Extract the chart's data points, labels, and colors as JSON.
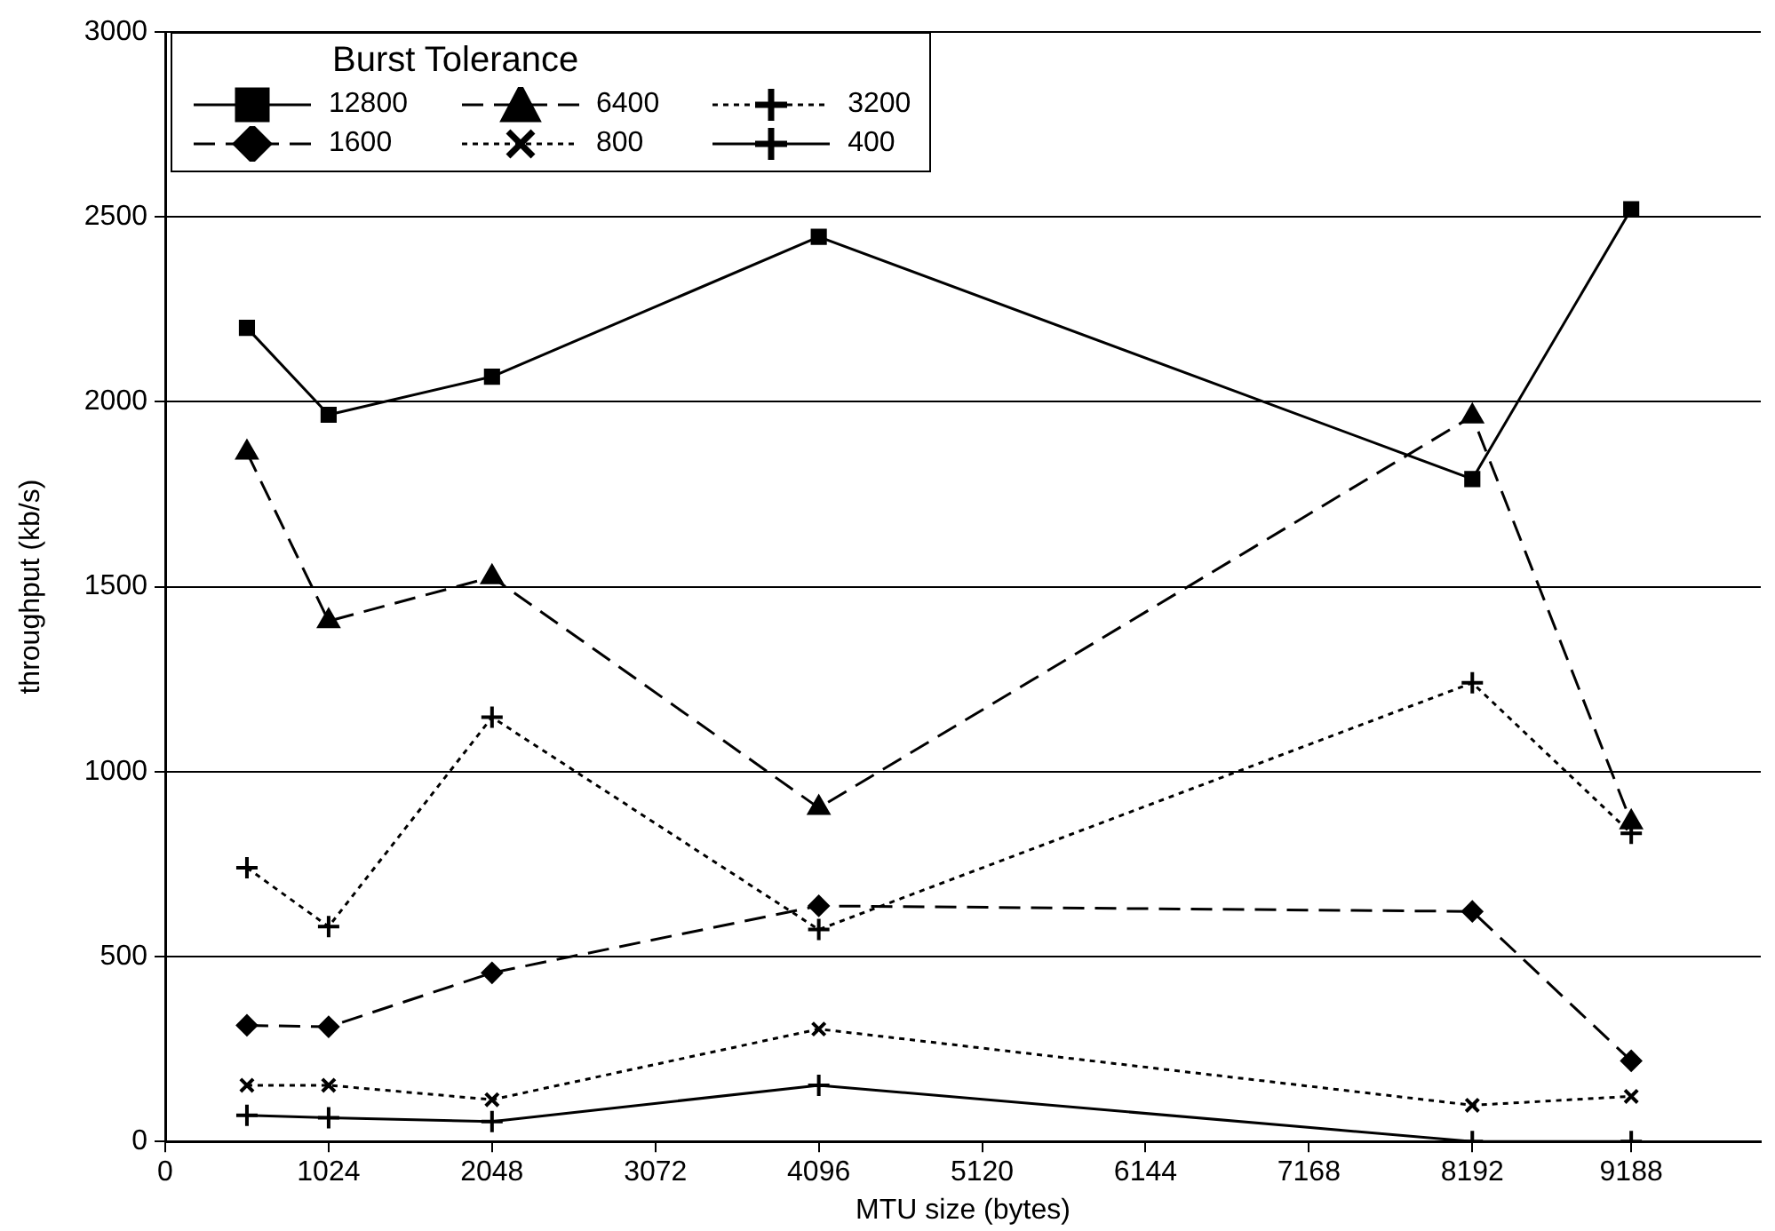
{
  "chart_data": {
    "type": "line",
    "xlabel": "MTU size (bytes)",
    "ylabel": "throughput (kb/s)",
    "legend_title": "Burst Tolerance",
    "x": [
      512,
      1024,
      2048,
      4096,
      8192,
      9188
    ],
    "xlim": [
      0,
      10000
    ],
    "xticks": [
      0,
      1024,
      2048,
      3072,
      4096,
      5120,
      6144,
      7168,
      8192,
      9188
    ],
    "ylim": [
      0,
      3000
    ],
    "yticks": [
      0,
      500,
      1000,
      1500,
      2000,
      2500,
      3000
    ],
    "grid": "y",
    "legend": "top left",
    "series": [
      {
        "name": "12800",
        "color": "#000000",
        "marker": "square",
        "line_style": "solid",
        "values": [
          2200,
          1965,
          2068,
          2446,
          1791,
          2521
        ]
      },
      {
        "name": "6400",
        "color": "#000000",
        "marker": "triangle",
        "line_style": "dashed",
        "values": [
          1863,
          1407,
          1526,
          902,
          1961,
          863
        ]
      },
      {
        "name": "3200",
        "color": "#000000",
        "marker": "cross",
        "line_style": "dotted",
        "values": [
          740,
          581,
          1147,
          573,
          1240,
          833
        ]
      },
      {
        "name": "1600",
        "color": "#000000",
        "marker": "diamond",
        "line_style": "dashed",
        "values": [
          314,
          310,
          456,
          637,
          622,
          218
        ]
      },
      {
        "name": "800",
        "color": "#000000",
        "marker": "x",
        "line_style": "dotted",
        "values": [
          152,
          152,
          113,
          304,
          98,
          122
        ]
      },
      {
        "name": "400",
        "color": "#000000",
        "marker": "cross",
        "line_style": "solid",
        "values": [
          71,
          64,
          54,
          152,
          0,
          0
        ]
      }
    ]
  }
}
